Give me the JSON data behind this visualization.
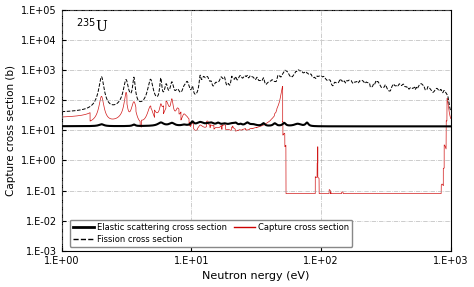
{
  "xlabel": "Neutron nergy (eV)",
  "ylabel": "Capture cross section (b)",
  "xmin": 1.0,
  "xmax": 1000.0,
  "ymin": 0.001,
  "ymax": 100000.0,
  "elastic_color": "#000000",
  "fission_color": "#000000",
  "capture_color": "#cc0000",
  "grid_color": "#999999",
  "legend_labels": [
    "Elastic scattering cross section",
    "Fission cross section",
    "Capture cross section"
  ],
  "elastic_base": 13.5,
  "seed": 17
}
